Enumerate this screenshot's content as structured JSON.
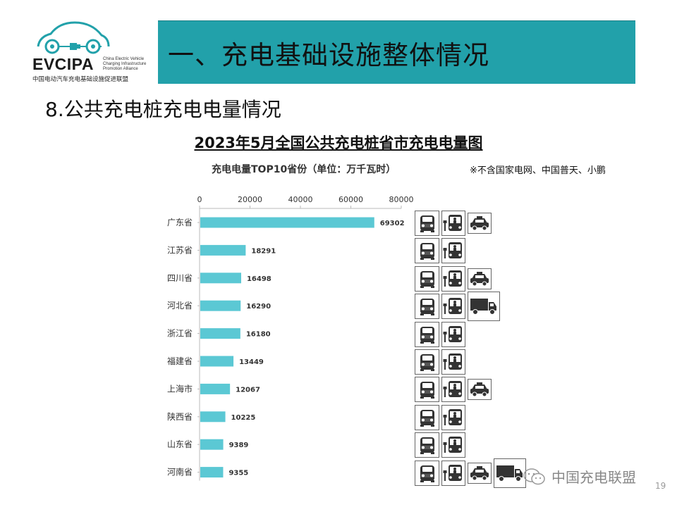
{
  "logo": {
    "name": "EVCIPA",
    "english": "China Electric Vehicle Charging Infrastructure Promotion Alliance",
    "chinese": "中国电动汽车充电基础设施促进联盟",
    "color": "#22a1aa"
  },
  "banner": {
    "title": "一、充电基础设施整体情况",
    "color": "#22a1aa"
  },
  "section_title": "8.公共充电桩充电电量情况",
  "footer": {
    "watermark": "中国充电联盟",
    "page_number": "19"
  },
  "chart_data": {
    "type": "bar",
    "orientation": "horizontal",
    "title": "2023年5月全国公共充电桩省市充电电量图",
    "subtitle": "充电电量TOP10省份（单位：万千瓦时）",
    "note": "※不含国家电网、中国普天、小鹏",
    "categories": [
      "广东省",
      "江苏省",
      "四川省",
      "河北省",
      "浙江省",
      "福建省",
      "上海市",
      "陕西省",
      "山东省",
      "河南省"
    ],
    "values": [
      69302,
      18291,
      16498,
      16290,
      16180,
      13449,
      12067,
      10225,
      9389,
      9355
    ],
    "data_labels": [
      "69302",
      "18291",
      "16498",
      "16290",
      "16180",
      "13449",
      "12067",
      "10225",
      "9389",
      "9355"
    ],
    "xticks": [
      "0",
      "20000",
      "40000",
      "60000",
      "80000"
    ],
    "xlim": [
      0,
      80000
    ],
    "axis_position": "top",
    "grid": false,
    "bar_color": "#5bc8d4"
  },
  "vehicle_icons": [
    [
      "car-icon",
      "bus-icon",
      "taxi-icon"
    ],
    [
      "car-icon",
      "bus-icon"
    ],
    [
      "car-icon",
      "bus-icon",
      "taxi-icon"
    ],
    [
      "car-icon",
      "bus-icon",
      "truck-icon"
    ],
    [
      "car-icon",
      "bus-icon"
    ],
    [
      "car-icon",
      "bus-icon"
    ],
    [
      "car-icon",
      "bus-icon",
      "taxi-icon"
    ],
    [
      "car-icon",
      "bus-icon"
    ],
    [
      "car-icon",
      "bus-icon"
    ],
    [
      "car-icon",
      "bus-icon",
      "taxi-icon",
      "truck-icon"
    ]
  ]
}
